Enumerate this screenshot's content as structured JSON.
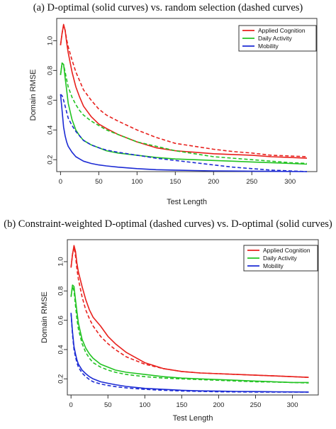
{
  "chart_data": [
    {
      "type": "line",
      "title": "(a)  D-optimal (solid curves) vs. random selection (dashed curves)",
      "xlabel": "Test Length",
      "ylabel": "Domain RMSE",
      "xlim": [
        -5,
        335
      ],
      "ylim": [
        0.12,
        1.15
      ],
      "xticks": [
        0,
        50,
        100,
        150,
        200,
        250,
        300
      ],
      "yticks": [
        0.2,
        0.4,
        0.6,
        0.8,
        1.0
      ],
      "ytick_labels": [
        "0.2",
        "0.4",
        "0.6",
        "0.8",
        "1.0"
      ],
      "legend": {
        "position": "top-right",
        "entries": [
          {
            "label": "Applied Cognition",
            "color": "#e8211d"
          },
          {
            "label": "Daily Activity",
            "color": "#22c322"
          },
          {
            "label": "Mobility",
            "color": "#1c2bd4"
          }
        ]
      },
      "series": [
        {
          "name": "Applied Cognition",
          "color": "#e8211d",
          "style": "solid",
          "x": [
            0,
            2,
            4,
            6,
            8,
            10,
            15,
            20,
            25,
            30,
            40,
            50,
            60,
            75,
            100,
            125,
            150,
            175,
            200,
            225,
            250,
            275,
            300,
            322
          ],
          "y": [
            0.97,
            1.05,
            1.11,
            1.07,
            0.99,
            0.92,
            0.79,
            0.69,
            0.62,
            0.56,
            0.49,
            0.44,
            0.41,
            0.37,
            0.32,
            0.28,
            0.26,
            0.25,
            0.24,
            0.235,
            0.23,
            0.22,
            0.215,
            0.21
          ]
        },
        {
          "name": "Applied Cognition",
          "color": "#e8211d",
          "style": "dashed",
          "x": [
            0,
            2,
            4,
            6,
            8,
            10,
            15,
            20,
            25,
            30,
            40,
            50,
            60,
            75,
            100,
            125,
            150,
            175,
            200,
            225,
            250,
            275,
            300,
            322
          ],
          "y": [
            0.97,
            1.05,
            1.1,
            1.07,
            1.01,
            0.96,
            0.87,
            0.79,
            0.73,
            0.67,
            0.6,
            0.54,
            0.5,
            0.46,
            0.4,
            0.35,
            0.31,
            0.29,
            0.27,
            0.255,
            0.245,
            0.23,
            0.225,
            0.22
          ]
        },
        {
          "name": "Daily Activity",
          "color": "#22c322",
          "style": "solid",
          "x": [
            0,
            2,
            4,
            6,
            8,
            10,
            15,
            20,
            25,
            30,
            40,
            50,
            60,
            75,
            100,
            125,
            150,
            175,
            200,
            225,
            250,
            275,
            300,
            322
          ],
          "y": [
            0.77,
            0.85,
            0.84,
            0.75,
            0.67,
            0.58,
            0.47,
            0.4,
            0.36,
            0.33,
            0.3,
            0.28,
            0.26,
            0.245,
            0.23,
            0.215,
            0.205,
            0.2,
            0.195,
            0.19,
            0.185,
            0.18,
            0.175,
            0.17
          ]
        },
        {
          "name": "Daily Activity",
          "color": "#22c322",
          "style": "dashed",
          "x": [
            0,
            2,
            4,
            6,
            8,
            10,
            15,
            20,
            25,
            30,
            40,
            50,
            60,
            75,
            100,
            125,
            150,
            175,
            200,
            225,
            250,
            275,
            300,
            322
          ],
          "y": [
            0.77,
            0.85,
            0.84,
            0.79,
            0.74,
            0.69,
            0.62,
            0.57,
            0.53,
            0.5,
            0.46,
            0.43,
            0.4,
            0.37,
            0.32,
            0.29,
            0.26,
            0.24,
            0.22,
            0.21,
            0.2,
            0.19,
            0.18,
            0.175
          ]
        },
        {
          "name": "Mobility",
          "color": "#1c2bd4",
          "style": "solid",
          "x": [
            0,
            2,
            4,
            6,
            8,
            10,
            15,
            20,
            25,
            30,
            40,
            50,
            60,
            75,
            100,
            125,
            150,
            175,
            200,
            225,
            250,
            275,
            300,
            322
          ],
          "y": [
            0.64,
            0.53,
            0.42,
            0.36,
            0.32,
            0.29,
            0.25,
            0.22,
            0.205,
            0.19,
            0.175,
            0.165,
            0.158,
            0.15,
            0.14,
            0.133,
            0.13,
            0.127,
            0.125,
            0.124,
            0.123,
            0.122,
            0.121,
            0.12
          ]
        },
        {
          "name": "Mobility",
          "color": "#1c2bd4",
          "style": "dashed",
          "x": [
            0,
            2,
            4,
            6,
            8,
            10,
            15,
            20,
            25,
            30,
            40,
            50,
            60,
            75,
            100,
            125,
            150,
            175,
            200,
            225,
            250,
            275,
            300,
            322
          ],
          "y": [
            0.64,
            0.63,
            0.6,
            0.56,
            0.52,
            0.48,
            0.43,
            0.39,
            0.36,
            0.33,
            0.3,
            0.28,
            0.265,
            0.25,
            0.23,
            0.21,
            0.195,
            0.18,
            0.165,
            0.15,
            0.14,
            0.13,
            0.125,
            0.12
          ]
        }
      ]
    },
    {
      "type": "line",
      "title": "(b) Constraint-weighted D-optimal (dashed curves) vs. D-optimal (solid curves)",
      "xlabel": "Test Length",
      "ylabel": "Domain RMSE",
      "xlim": [
        -5,
        335
      ],
      "ylim": [
        0.09,
        1.15
      ],
      "xticks": [
        0,
        50,
        100,
        150,
        200,
        250,
        300
      ],
      "yticks": [
        0.2,
        0.4,
        0.6,
        0.8,
        1.0
      ],
      "ytick_labels": [
        "0.2",
        "0.4",
        "0.6",
        "0.8",
        "1.0"
      ],
      "legend": {
        "position": "top-right",
        "entries": [
          {
            "label": "Applied Cognition",
            "color": "#e8211d"
          },
          {
            "label": "Daily Activity",
            "color": "#22c322"
          },
          {
            "label": "Mobility",
            "color": "#1c2bd4"
          }
        ]
      },
      "series": [
        {
          "name": "Applied Cognition",
          "color": "#e8211d",
          "style": "solid",
          "x": [
            0,
            2,
            4,
            6,
            8,
            10,
            15,
            20,
            25,
            30,
            40,
            50,
            60,
            75,
            100,
            125,
            150,
            175,
            200,
            225,
            250,
            275,
            300,
            322
          ],
          "y": [
            0.96,
            1.05,
            1.11,
            1.07,
            0.99,
            0.93,
            0.83,
            0.74,
            0.67,
            0.62,
            0.56,
            0.49,
            0.44,
            0.38,
            0.31,
            0.27,
            0.25,
            0.24,
            0.235,
            0.23,
            0.225,
            0.22,
            0.215,
            0.21
          ]
        },
        {
          "name": "Applied Cognition",
          "color": "#e8211d",
          "style": "dashed",
          "x": [
            0,
            2,
            4,
            6,
            8,
            10,
            15,
            20,
            25,
            30,
            40,
            50,
            60,
            75,
            100,
            125,
            150,
            175,
            200,
            225,
            250,
            275,
            300,
            322
          ],
          "y": [
            0.96,
            1.05,
            1.1,
            1.04,
            0.95,
            0.88,
            0.76,
            0.67,
            0.61,
            0.56,
            0.49,
            0.44,
            0.4,
            0.35,
            0.3,
            0.27,
            0.25,
            0.24,
            0.235,
            0.23,
            0.225,
            0.22,
            0.215,
            0.21
          ]
        },
        {
          "name": "Daily Activity",
          "color": "#22c322",
          "style": "solid",
          "x": [
            0,
            2,
            4,
            6,
            8,
            10,
            15,
            20,
            25,
            30,
            40,
            50,
            60,
            75,
            100,
            125,
            150,
            175,
            200,
            225,
            250,
            275,
            300,
            322
          ],
          "y": [
            0.76,
            0.84,
            0.83,
            0.74,
            0.66,
            0.58,
            0.47,
            0.41,
            0.37,
            0.34,
            0.3,
            0.28,
            0.26,
            0.245,
            0.23,
            0.215,
            0.205,
            0.2,
            0.195,
            0.19,
            0.185,
            0.18,
            0.175,
            0.175
          ]
        },
        {
          "name": "Daily Activity",
          "color": "#22c322",
          "style": "dashed",
          "x": [
            0,
            2,
            4,
            6,
            8,
            10,
            15,
            20,
            25,
            30,
            40,
            50,
            60,
            75,
            100,
            125,
            150,
            175,
            200,
            225,
            250,
            275,
            300,
            322
          ],
          "y": [
            0.76,
            0.83,
            0.8,
            0.7,
            0.61,
            0.54,
            0.44,
            0.38,
            0.34,
            0.31,
            0.28,
            0.26,
            0.245,
            0.23,
            0.215,
            0.205,
            0.2,
            0.195,
            0.19,
            0.185,
            0.18,
            0.178,
            0.175,
            0.172
          ]
        },
        {
          "name": "Mobility",
          "color": "#1c2bd4",
          "style": "solid",
          "x": [
            0,
            2,
            4,
            6,
            8,
            10,
            15,
            20,
            25,
            30,
            40,
            50,
            60,
            75,
            100,
            125,
            150,
            175,
            200,
            225,
            250,
            275,
            300,
            322
          ],
          "y": [
            0.65,
            0.52,
            0.42,
            0.37,
            0.33,
            0.3,
            0.26,
            0.235,
            0.215,
            0.2,
            0.18,
            0.17,
            0.16,
            0.148,
            0.135,
            0.128,
            0.122,
            0.118,
            0.116,
            0.114,
            0.113,
            0.112,
            0.111,
            0.11
          ]
        },
        {
          "name": "Mobility",
          "color": "#1c2bd4",
          "style": "dashed",
          "x": [
            0,
            2,
            4,
            6,
            8,
            10,
            15,
            20,
            25,
            30,
            40,
            50,
            60,
            75,
            100,
            125,
            150,
            175,
            200,
            225,
            250,
            275,
            300,
            322
          ],
          "y": [
            0.65,
            0.5,
            0.4,
            0.35,
            0.31,
            0.28,
            0.24,
            0.215,
            0.195,
            0.18,
            0.165,
            0.155,
            0.147,
            0.138,
            0.128,
            0.122,
            0.117,
            0.114,
            0.112,
            0.111,
            0.11,
            0.11,
            0.11,
            0.11
          ]
        }
      ]
    }
  ]
}
